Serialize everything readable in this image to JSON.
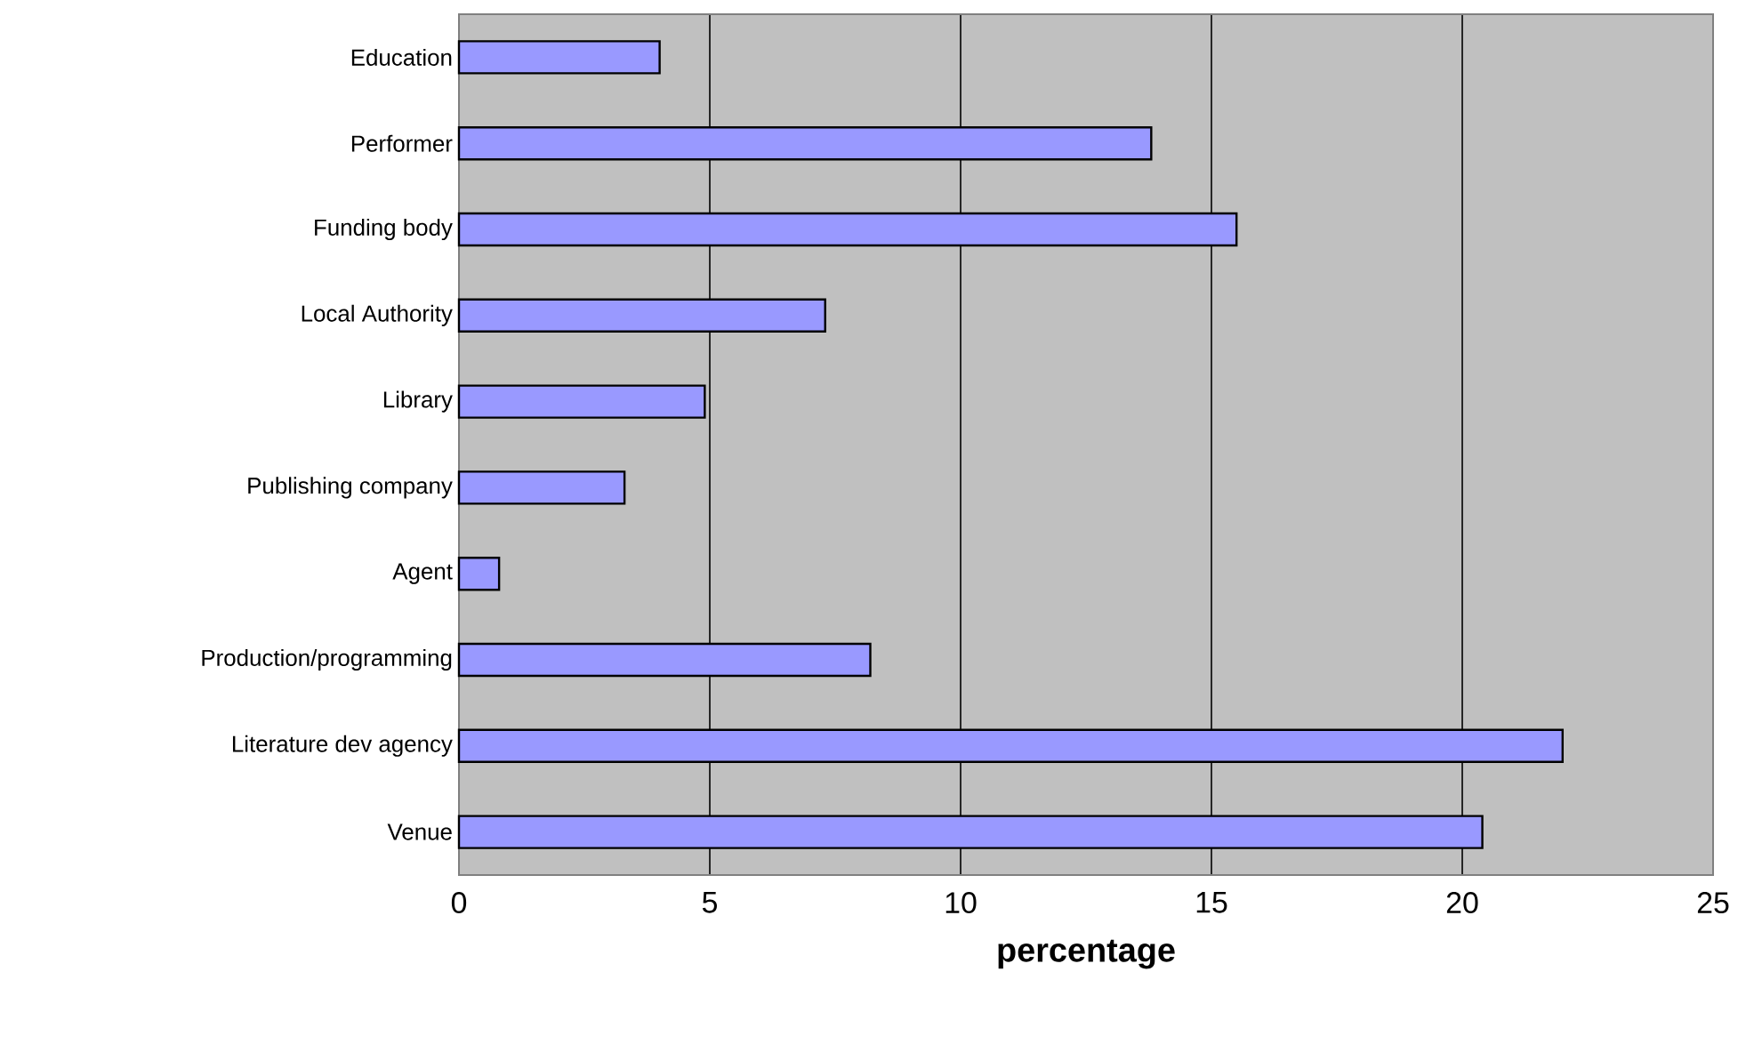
{
  "chart_data": {
    "type": "bar",
    "orientation": "horizontal",
    "xlabel": "percentage",
    "categories": [
      "Education",
      "Performer",
      "Funding body",
      "Local Authority",
      "Library",
      "Publishing company",
      "Agent",
      "Production/programming",
      "Literature dev agency",
      "Venue"
    ],
    "values": [
      4.0,
      13.8,
      15.5,
      7.3,
      4.9,
      3.3,
      0.8,
      8.2,
      22.0,
      20.4
    ],
    "color": "#9999ff",
    "xlim": [
      0,
      25
    ],
    "xticks": [
      0,
      5,
      10,
      15,
      20,
      25
    ],
    "grid": "x"
  }
}
